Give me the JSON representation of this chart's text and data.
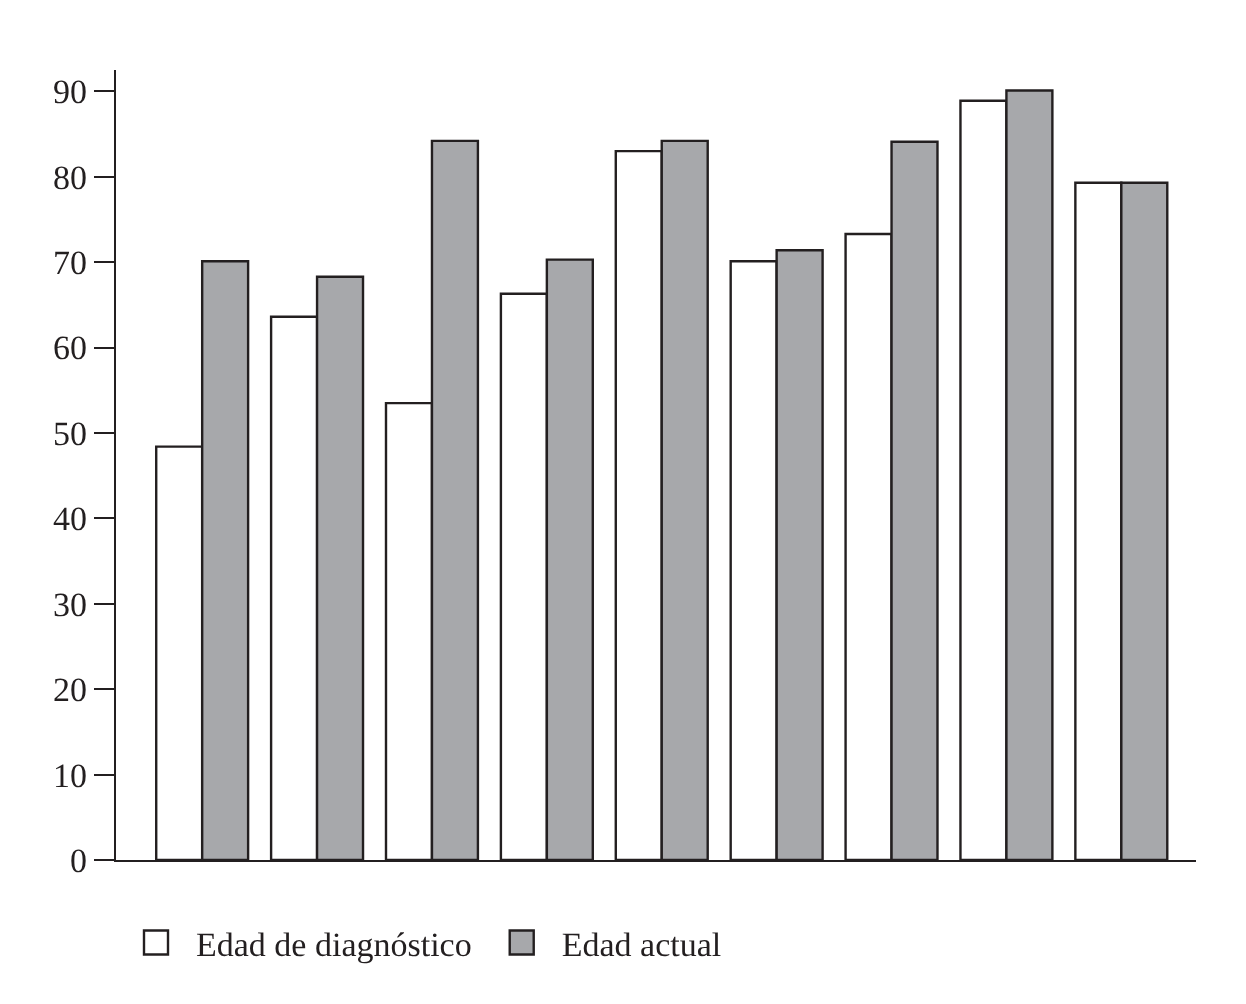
{
  "chart_data": {
    "type": "bar",
    "categories": [
      null,
      null,
      null,
      null,
      null,
      null,
      null,
      null,
      null
    ],
    "series": [
      {
        "name": "Edad de diagnóstico",
        "color": "#ffffff",
        "values": [
          48.4,
          63.6,
          53.5,
          66.3,
          83.0,
          70.1,
          73.3,
          88.9,
          79.3
        ]
      },
      {
        "name": "Edad actual",
        "color": "#a7a8ab",
        "values": [
          70.1,
          68.3,
          84.2,
          70.3,
          84.2,
          71.4,
          84.1,
          90.1,
          79.3
        ]
      }
    ],
    "ylim": [
      0,
      92.5
    ],
    "yticks": [
      0,
      10,
      20,
      30,
      40,
      50,
      60,
      70,
      80,
      90
    ],
    "legend": "bottom left"
  }
}
